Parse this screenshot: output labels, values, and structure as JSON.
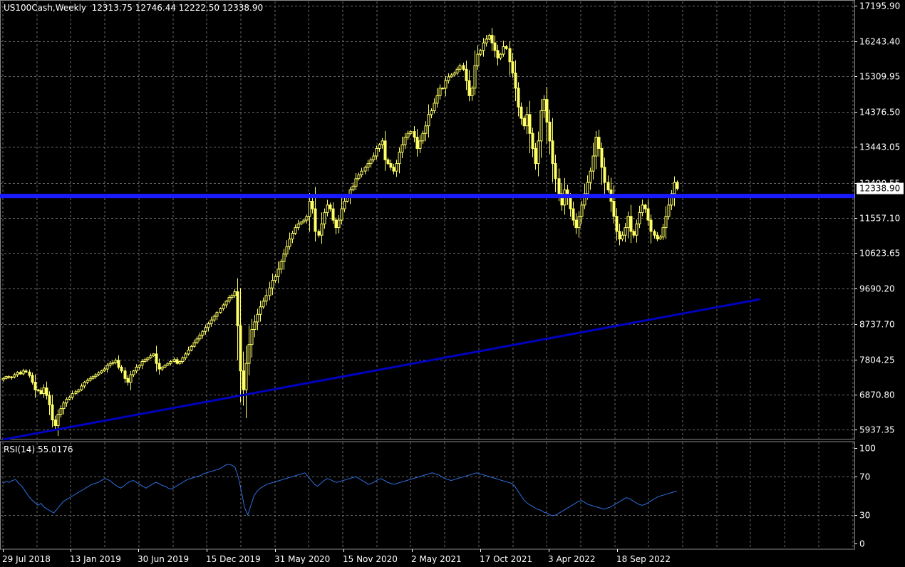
{
  "header": {
    "symbol_info": "US100Cash,Weekly  12313.75 12746.44 12222.50 12338.90"
  },
  "rsi_header": {
    "label": "RSI(14) 55.0176"
  },
  "colors": {
    "background": "#000000",
    "grid": "#6a6a6a",
    "candle": "#ffff66",
    "hline": "#1a1aff",
    "trendline": "#0000c0",
    "rsi_line": "#2f6fe0",
    "price_tag_bg": "#ffffff",
    "axis_text": "#ffffff"
  },
  "chart_data": [
    {
      "type": "candlestick",
      "title": "US100Cash,Weekly",
      "ohlc_last": {
        "open": 12313.75,
        "high": 12746.44,
        "low": 12222.5,
        "close": 12338.9
      },
      "y_ticks": [
        "17195.90",
        "16243.40",
        "15309.95",
        "14376.50",
        "13443.05",
        "12490.55",
        "11557.10",
        "10623.65",
        "9690.20",
        "8737.70",
        "7804.25",
        "6870.80",
        "5937.35"
      ],
      "x_ticks": [
        "29 Jul 2018",
        "13 Jan 2019",
        "30 Jun 2019",
        "15 Dec 2019",
        "31 May 2020",
        "15 Nov 2020",
        "2 May 2021",
        "17 Oct 2021",
        "3 Apr 2022",
        "18 Sep 2022"
      ],
      "ylim": [
        5700,
        17300
      ],
      "horizontal_line": {
        "value": 12140
      },
      "trendline": {
        "start": {
          "date": "2018-07-29",
          "value": 5680
        },
        "end": {
          "date": "2023-08-27",
          "value": 9400
        }
      },
      "current_price_label": "12338.90",
      "close_series": [
        7300,
        7350,
        7330,
        7340,
        7400,
        7460,
        7420,
        7500,
        7470,
        7380,
        7200,
        7000,
        6980,
        6900,
        7050,
        6850,
        6600,
        6200,
        6050,
        6350,
        6500,
        6650,
        6750,
        6800,
        6900,
        6950,
        7000,
        7100,
        7200,
        7250,
        7300,
        7350,
        7400,
        7450,
        7500,
        7550,
        7650,
        7700,
        7720,
        7780,
        7600,
        7500,
        7300,
        7200,
        7400,
        7500,
        7600,
        7650,
        7750,
        7800,
        7850,
        7900,
        7950,
        7700,
        7550,
        7600,
        7650,
        7700,
        7750,
        7800,
        7700,
        7750,
        7850,
        7950,
        8050,
        8150,
        8250,
        8350,
        8450,
        8550,
        8650,
        8750,
        8850,
        8950,
        9050,
        9150,
        9250,
        9350,
        9450,
        9500,
        9600,
        8700,
        7500,
        7000,
        7700,
        8200,
        8600,
        8800,
        9000,
        9200,
        9350,
        9500,
        9700,
        9900,
        10000,
        10200,
        10400,
        10600,
        10800,
        11000,
        11150,
        11300,
        11400,
        11450,
        11500,
        11600,
        12000,
        11800,
        11200,
        11100,
        11400,
        11700,
        11900,
        11800,
        11500,
        11300,
        11500,
        11800,
        12000,
        12100,
        12300,
        12400,
        12600,
        12700,
        12800,
        12900,
        13000,
        13100,
        13200,
        13400,
        13500,
        13600,
        13100,
        13000,
        12900,
        12800,
        13000,
        13300,
        13500,
        13700,
        13800,
        13850,
        13700,
        13400,
        13600,
        13800,
        14000,
        14300,
        14400,
        14600,
        14800,
        15000,
        15000,
        15200,
        15300,
        15350,
        15400,
        15500,
        15600,
        15500,
        15200,
        14800,
        15000,
        15600,
        15900,
        16000,
        16200,
        16300,
        16400,
        16200,
        16000,
        15800,
        15900,
        16100,
        16050,
        15700,
        15400,
        15000,
        14500,
        14200,
        14000,
        14300,
        13800,
        13400,
        13000,
        13600,
        14400,
        14700,
        14100,
        13600,
        13000,
        12600,
        12200,
        11900,
        12300,
        12100,
        11800,
        11500,
        11300,
        11600,
        11900,
        12200,
        12500,
        12800,
        13200,
        13700,
        13400,
        12900,
        12500,
        12300,
        12000,
        11600,
        11200,
        11000,
        11100,
        11300,
        11600,
        11200,
        11100,
        11400,
        11700,
        11900,
        11800,
        11500,
        11200,
        11100,
        11000,
        11050,
        11300,
        11600,
        11900,
        12200,
        12500,
        12338.9
      ]
    },
    {
      "type": "line",
      "title": "RSI(14) 55.0176",
      "y_ticks": [
        "100",
        "70",
        "30",
        "0"
      ],
      "ylim": [
        0,
        100
      ],
      "series": [
        {
          "values": [
            63,
            65,
            64,
            66,
            67,
            63,
            60,
            55,
            50,
            46,
            43,
            40,
            42,
            38,
            36,
            34,
            32,
            36,
            40,
            44,
            46,
            48,
            50,
            52,
            54,
            56,
            58,
            60,
            62,
            63,
            64,
            66,
            68,
            67,
            65,
            62,
            60,
            58,
            60,
            63,
            65,
            66,
            64,
            62,
            60,
            58,
            60,
            62,
            64,
            63,
            61,
            60,
            58,
            57,
            59,
            61,
            63,
            65,
            67,
            68,
            69,
            70,
            71,
            73,
            74,
            75,
            76,
            77,
            78,
            80,
            82,
            83,
            82,
            80,
            70,
            55,
            38,
            30,
            40,
            50,
            55,
            58,
            60,
            62,
            63,
            64,
            65,
            66,
            67,
            68,
            69,
            70,
            71,
            72,
            73,
            74,
            70,
            66,
            62,
            60,
            63,
            66,
            68,
            67,
            65,
            64,
            65,
            66,
            67,
            68,
            69,
            70,
            68,
            66,
            64,
            62,
            63,
            65,
            67,
            68,
            66,
            64,
            63,
            62,
            63,
            64,
            65,
            66,
            67,
            68,
            69,
            70,
            71,
            72,
            73,
            74,
            73,
            72,
            70,
            68,
            67,
            66,
            67,
            68,
            69,
            70,
            71,
            72,
            73,
            74,
            73,
            72,
            71,
            70,
            69,
            68,
            67,
            66,
            65,
            64,
            63,
            60,
            55,
            50,
            45,
            42,
            40,
            38,
            36,
            35,
            33,
            32,
            30,
            29,
            30,
            32,
            34,
            36,
            38,
            40,
            42,
            44,
            45,
            43,
            41,
            40,
            39,
            38,
            37,
            36,
            37,
            38,
            40,
            42,
            44,
            46,
            48,
            47,
            45,
            43,
            41,
            40,
            41,
            43,
            45,
            47,
            49,
            50,
            51,
            52,
            53,
            54,
            55.0176
          ]
        }
      ]
    }
  ]
}
